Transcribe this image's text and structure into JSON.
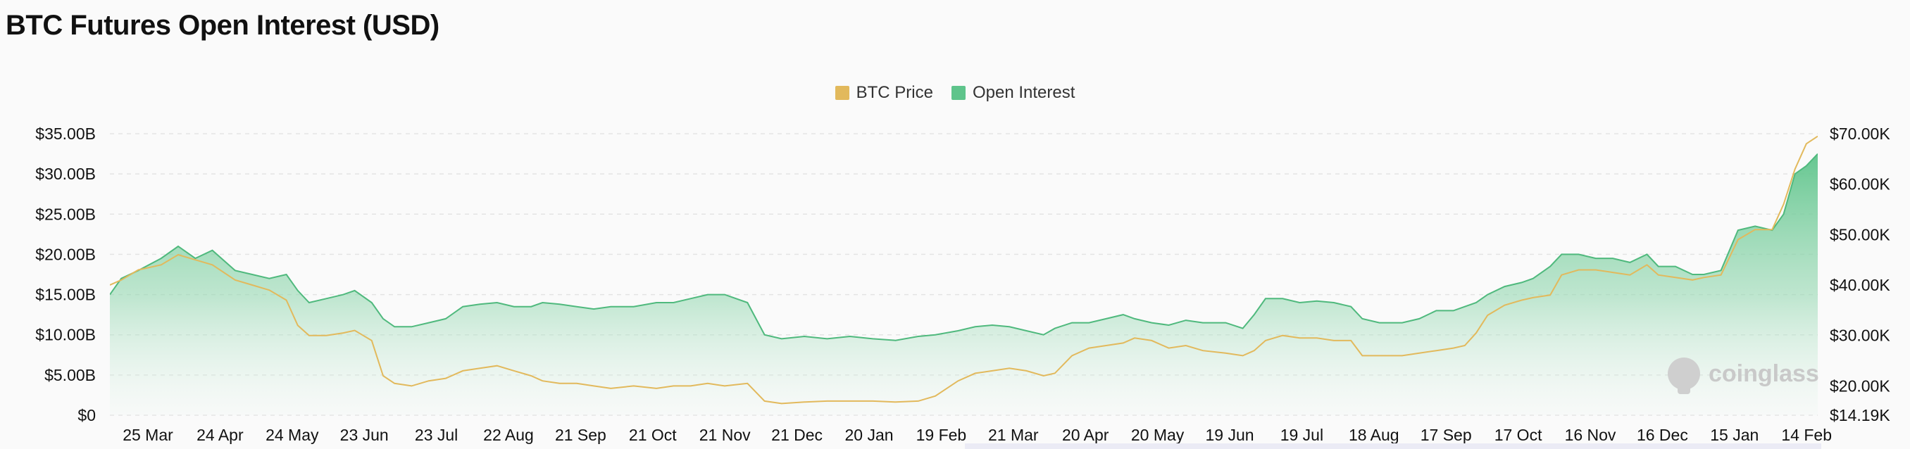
{
  "title": "BTC Futures Open Interest (USD)",
  "watermark": "coinglass",
  "legend": [
    {
      "label": "BTC Price",
      "color": "#e2b95c"
    },
    {
      "label": "Open Interest",
      "color": "#5ec48b"
    }
  ],
  "chart_data": {
    "type": "area",
    "title": "BTC Futures Open Interest (USD)",
    "x_ticks": [
      "25 Mar",
      "24 Apr",
      "24 May",
      "23 Jun",
      "23 Jul",
      "22 Aug",
      "21 Sep",
      "21 Oct",
      "21 Nov",
      "21 Dec",
      "20 Jan",
      "19 Feb",
      "21 Mar",
      "20 Apr",
      "20 May",
      "19 Jun",
      "19 Jul",
      "18 Aug",
      "17 Sep",
      "17 Oct",
      "16 Nov",
      "16 Dec",
      "15 Jan",
      "14 Feb"
    ],
    "y_left_ticks": [
      "$0",
      "$5.00B",
      "$10.00B",
      "$15.00B",
      "$20.00B",
      "$25.00B",
      "$30.00B",
      "$35.00B"
    ],
    "y_left_range": [
      0,
      35
    ],
    "y_right_ticks": [
      "$14.19K",
      "$20.00K",
      "$30.00K",
      "$40.00K",
      "$50.00K",
      "$60.00K",
      "$70.00K"
    ],
    "y_right_values": [
      14.19,
      20,
      30,
      40,
      50,
      60,
      70
    ],
    "y_right_range": [
      14.19,
      70
    ],
    "legend_position": "top-center",
    "grid": "horizontal-dashed",
    "x_index_range": [
      0,
      22.9
    ],
    "series": [
      {
        "name": "Open Interest",
        "axis": "left",
        "unit": "$B",
        "color": "#5ec48b",
        "points": [
          [
            -1,
            15
          ],
          [
            -0.8,
            17
          ],
          [
            -0.5,
            18
          ],
          [
            -0.1,
            19.5
          ],
          [
            0.2,
            21
          ],
          [
            0.5,
            19.5
          ],
          [
            0.8,
            20.5
          ],
          [
            1.2,
            18
          ],
          [
            1.5,
            17.5
          ],
          [
            1.8,
            17
          ],
          [
            2.1,
            17.5
          ],
          [
            2.3,
            15.5
          ],
          [
            2.5,
            14
          ],
          [
            2.8,
            14.5
          ],
          [
            3.1,
            15
          ],
          [
            3.3,
            15.5
          ],
          [
            3.6,
            14
          ],
          [
            3.8,
            12
          ],
          [
            4,
            11
          ],
          [
            4.3,
            11
          ],
          [
            4.6,
            11.5
          ],
          [
            4.9,
            12
          ],
          [
            5.2,
            13.5
          ],
          [
            5.5,
            13.8
          ],
          [
            5.8,
            14
          ],
          [
            6.1,
            13.5
          ],
          [
            6.4,
            13.5
          ],
          [
            6.6,
            14
          ],
          [
            6.9,
            13.8
          ],
          [
            7.2,
            13.5
          ],
          [
            7.5,
            13.2
          ],
          [
            7.8,
            13.5
          ],
          [
            8.2,
            13.5
          ],
          [
            8.6,
            14
          ],
          [
            8.9,
            14
          ],
          [
            9.2,
            14.5
          ],
          [
            9.5,
            15
          ],
          [
            9.8,
            15
          ],
          [
            10.2,
            14
          ],
          [
            10.5,
            10
          ],
          [
            10.8,
            9.5
          ],
          [
            11.2,
            9.8
          ],
          [
            11.6,
            9.5
          ],
          [
            12,
            9.8
          ],
          [
            12.4,
            9.5
          ],
          [
            12.8,
            9.3
          ],
          [
            13.2,
            9.8
          ],
          [
            13.5,
            10
          ],
          [
            13.9,
            10.5
          ],
          [
            14.2,
            11
          ],
          [
            14.5,
            11.2
          ],
          [
            14.8,
            11
          ],
          [
            15.1,
            10.5
          ],
          [
            15.4,
            10
          ],
          [
            15.6,
            10.8
          ],
          [
            15.9,
            11.5
          ],
          [
            16.2,
            11.5
          ],
          [
            16.5,
            12
          ],
          [
            16.8,
            12.5
          ],
          [
            17,
            12
          ],
          [
            17.3,
            11.5
          ],
          [
            17.6,
            11.2
          ],
          [
            17.9,
            11.8
          ],
          [
            18.2,
            11.5
          ],
          [
            18.6,
            11.5
          ],
          [
            18.9,
            10.8
          ],
          [
            19.1,
            12.5
          ],
          [
            19.3,
            14.5
          ],
          [
            19.6,
            14.5
          ],
          [
            19.9,
            14
          ],
          [
            20.2,
            14.2
          ],
          [
            20.5,
            14
          ],
          [
            20.8,
            13.5
          ],
          [
            21,
            12
          ],
          [
            21.3,
            11.5
          ],
          [
            21.7,
            11.5
          ],
          [
            22,
            12
          ],
          [
            22.3,
            13
          ],
          [
            22.6,
            13
          ],
          [
            22.8,
            13.5
          ],
          [
            23,
            14
          ],
          [
            23.2,
            15
          ],
          [
            23.5,
            16
          ],
          [
            23.8,
            16.5
          ],
          [
            24,
            17
          ],
          [
            24.3,
            18.5
          ],
          [
            24.5,
            20
          ],
          [
            24.8,
            20
          ],
          [
            25.1,
            19.5
          ],
          [
            25.4,
            19.5
          ],
          [
            25.7,
            19
          ],
          [
            26,
            20
          ],
          [
            26.2,
            18.5
          ],
          [
            26.5,
            18.5
          ],
          [
            26.8,
            17.5
          ],
          [
            27,
            17.5
          ],
          [
            27.3,
            18
          ],
          [
            27.6,
            23
          ],
          [
            27.9,
            23.5
          ],
          [
            28.2,
            23
          ],
          [
            28.4,
            25
          ],
          [
            28.6,
            30
          ],
          [
            28.8,
            31
          ],
          [
            29,
            32.5
          ]
        ]
      },
      {
        "name": "BTC Price",
        "axis": "right",
        "unit": "$K",
        "color": "#e2b95c",
        "points": [
          [
            -1,
            40
          ],
          [
            -0.8,
            41
          ],
          [
            -0.5,
            43
          ],
          [
            -0.1,
            44
          ],
          [
            0.2,
            46
          ],
          [
            0.5,
            45
          ],
          [
            0.8,
            44
          ],
          [
            1.2,
            41
          ],
          [
            1.5,
            40
          ],
          [
            1.8,
            39
          ],
          [
            2.1,
            37
          ],
          [
            2.3,
            32
          ],
          [
            2.5,
            30
          ],
          [
            2.8,
            30
          ],
          [
            3.1,
            30.5
          ],
          [
            3.3,
            31
          ],
          [
            3.6,
            29
          ],
          [
            3.8,
            22
          ],
          [
            4,
            20.5
          ],
          [
            4.3,
            20
          ],
          [
            4.6,
            21
          ],
          [
            4.9,
            21.5
          ],
          [
            5.2,
            23
          ],
          [
            5.5,
            23.5
          ],
          [
            5.8,
            24
          ],
          [
            6.1,
            23
          ],
          [
            6.4,
            22
          ],
          [
            6.6,
            21
          ],
          [
            6.9,
            20.5
          ],
          [
            7.2,
            20.5
          ],
          [
            7.5,
            20
          ],
          [
            7.8,
            19.5
          ],
          [
            8.2,
            20
          ],
          [
            8.6,
            19.5
          ],
          [
            8.9,
            20
          ],
          [
            9.2,
            20
          ],
          [
            9.5,
            20.5
          ],
          [
            9.8,
            20
          ],
          [
            10.2,
            20.5
          ],
          [
            10.5,
            17
          ],
          [
            10.8,
            16.5
          ],
          [
            11.2,
            16.8
          ],
          [
            11.6,
            17
          ],
          [
            12,
            17
          ],
          [
            12.4,
            17
          ],
          [
            12.8,
            16.8
          ],
          [
            13.2,
            17
          ],
          [
            13.5,
            18
          ],
          [
            13.9,
            21
          ],
          [
            14.2,
            22.5
          ],
          [
            14.5,
            23
          ],
          [
            14.8,
            23.5
          ],
          [
            15.1,
            23
          ],
          [
            15.4,
            22
          ],
          [
            15.6,
            22.5
          ],
          [
            15.9,
            26
          ],
          [
            16.2,
            27.5
          ],
          [
            16.5,
            28
          ],
          [
            16.8,
            28.5
          ],
          [
            17,
            29.5
          ],
          [
            17.3,
            29
          ],
          [
            17.6,
            27.5
          ],
          [
            17.9,
            28
          ],
          [
            18.2,
            27
          ],
          [
            18.6,
            26.5
          ],
          [
            18.9,
            26
          ],
          [
            19.1,
            27
          ],
          [
            19.3,
            29
          ],
          [
            19.6,
            30
          ],
          [
            19.9,
            29.5
          ],
          [
            20.2,
            29.5
          ],
          [
            20.5,
            29
          ],
          [
            20.8,
            29
          ],
          [
            21,
            26
          ],
          [
            21.3,
            26
          ],
          [
            21.7,
            26
          ],
          [
            22,
            26.5
          ],
          [
            22.3,
            27
          ],
          [
            22.6,
            27.5
          ],
          [
            22.8,
            28
          ],
          [
            23,
            30.5
          ],
          [
            23.2,
            34
          ],
          [
            23.5,
            36
          ],
          [
            23.8,
            37
          ],
          [
            24,
            37.5
          ],
          [
            24.3,
            38
          ],
          [
            24.5,
            42
          ],
          [
            24.8,
            43
          ],
          [
            25.1,
            43
          ],
          [
            25.4,
            42.5
          ],
          [
            25.7,
            42
          ],
          [
            26,
            44
          ],
          [
            26.2,
            42
          ],
          [
            26.5,
            41.5
          ],
          [
            26.8,
            41
          ],
          [
            27,
            41.5
          ],
          [
            27.3,
            42
          ],
          [
            27.6,
            49
          ],
          [
            27.9,
            51
          ],
          [
            28.2,
            51
          ],
          [
            28.4,
            56
          ],
          [
            28.6,
            63
          ],
          [
            28.8,
            68
          ],
          [
            29,
            69.5
          ]
        ]
      }
    ]
  }
}
